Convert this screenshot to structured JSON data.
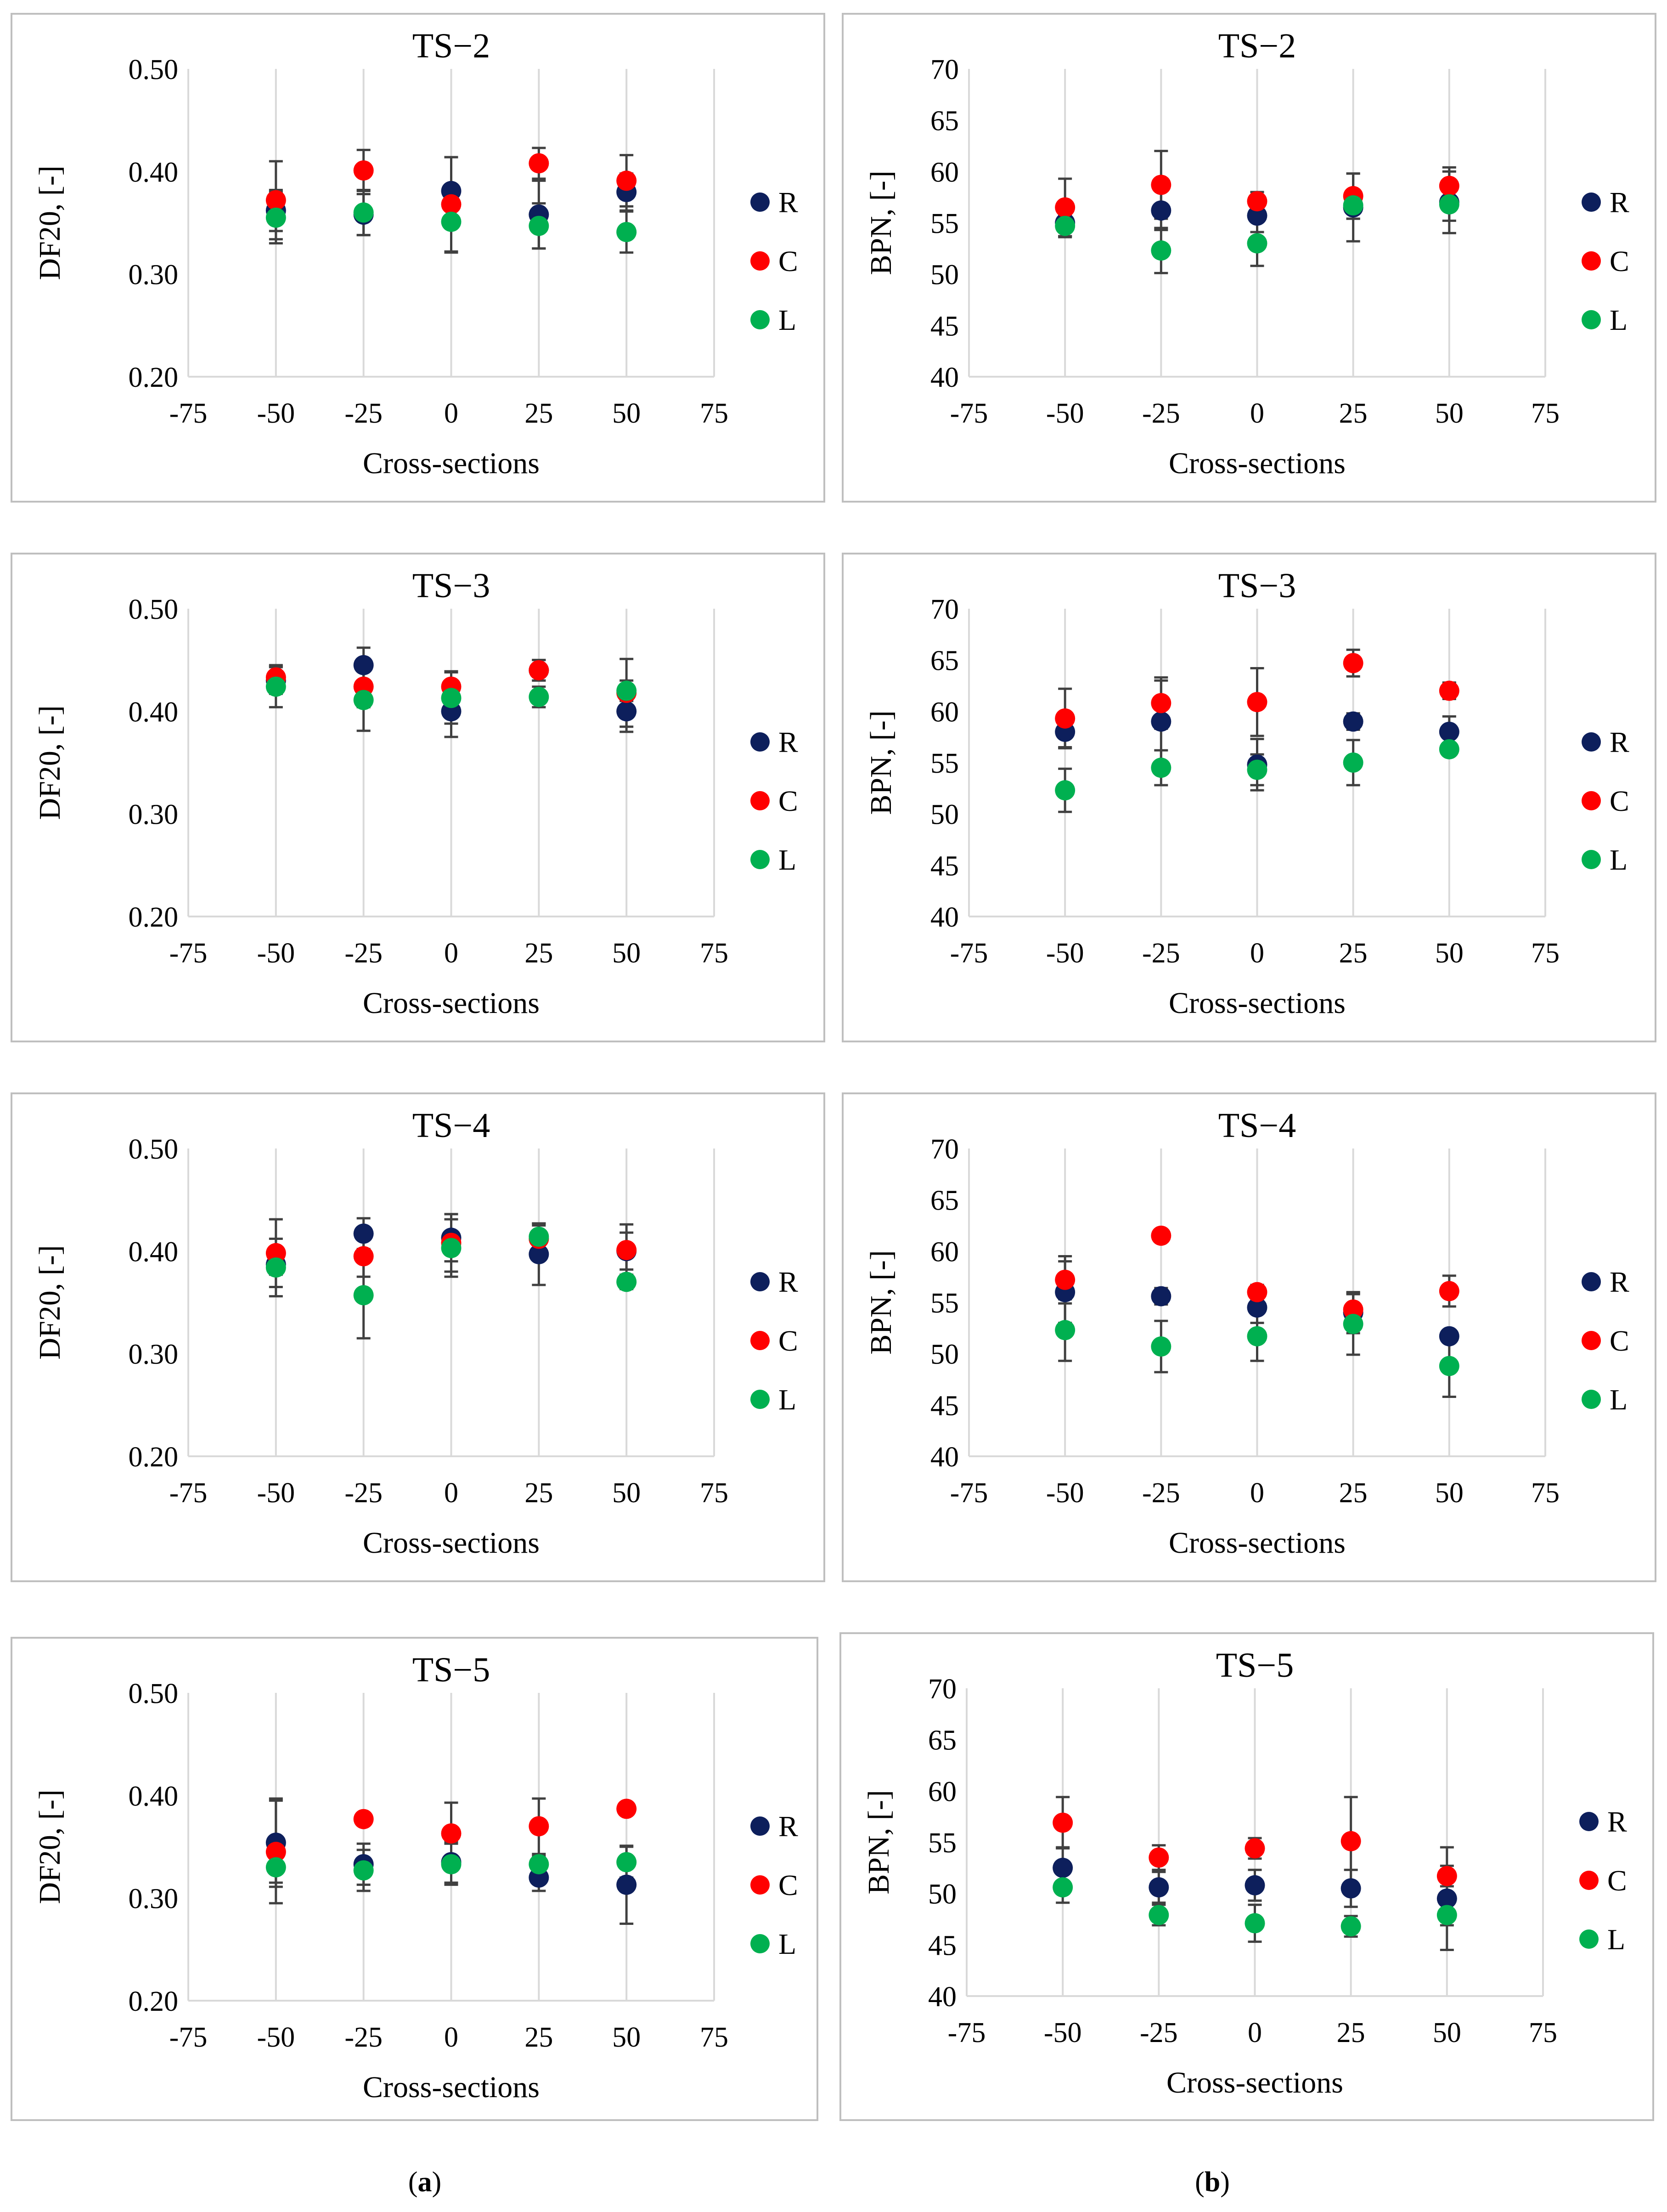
{
  "panel_labels": [
    {
      "open": "(",
      "letter": "a",
      "close": ")"
    },
    {
      "open": "(",
      "letter": "b",
      "close": ")"
    }
  ],
  "colors": {
    "R": "#0d1f5c",
    "C": "#ff0000",
    "L": "#00b050",
    "error_bar": "#404040",
    "grid": "#d9d9d9",
    "frame": "#bfbfbf"
  },
  "chart_data": [
    {
      "type": "scatter",
      "metric": "DF20",
      "title": "TS−2",
      "xlabel": "Cross-sections",
      "ylabel": "DF20, [-]",
      "xlim": [
        -75,
        75
      ],
      "xticks": [
        "-75",
        "-50",
        "-25",
        "0",
        "25",
        "50",
        "75"
      ],
      "ylim": [
        0.2,
        0.5
      ],
      "yticks": [
        "0.20",
        "0.30",
        "0.40",
        "0.50"
      ],
      "grid": "vertical",
      "legend": "right",
      "x": [
        -50,
        -25,
        0,
        25,
        50
      ],
      "series": [
        {
          "name": "R",
          "values": [
            0.362,
            0.358,
            0.381,
            0.358,
            0.38
          ],
          "errors": [
            0.02,
            0.02,
            0.033,
            0.033,
            0.018
          ]
        },
        {
          "name": "C",
          "values": [
            0.372,
            0.401,
            0.368,
            0.408,
            0.391
          ],
          "errors": [
            0.038,
            0.02,
            0.046,
            0.015,
            0.025
          ]
        },
        {
          "name": "L",
          "values": [
            0.355,
            0.36,
            0.351,
            0.347,
            0.341
          ],
          "errors": [
            0.025,
            0.022,
            0.03,
            0.022,
            0.02
          ]
        }
      ]
    },
    {
      "type": "scatter",
      "metric": "BPN",
      "title": "TS−2",
      "xlabel": "Cross-sections",
      "ylabel": "BPN, [-]",
      "xlim": [
        -75,
        75
      ],
      "xticks": [
        "-75",
        "-50",
        "-25",
        "0",
        "25",
        "50",
        "75"
      ],
      "ylim": [
        40,
        70
      ],
      "yticks": [
        "40",
        "45",
        "50",
        "55",
        "60",
        "65",
        "70"
      ],
      "grid": "vertical",
      "legend": "right",
      "x": [
        -50,
        -25,
        0,
        25,
        50
      ],
      "series": [
        {
          "name": "R",
          "values": [
            55.0,
            56.2,
            55.7,
            56.5,
            57.0
          ],
          "errors": [
            1.3,
            1.9,
            1.6,
            3.3,
            3.0
          ]
        },
        {
          "name": "C",
          "values": [
            56.5,
            58.7,
            57.1,
            57.6,
            58.6
          ],
          "errors": [
            2.8,
            3.3,
            0.9,
            2.2,
            1.8
          ]
        },
        {
          "name": "L",
          "values": [
            54.7,
            52.3,
            53.0,
            56.7,
            56.8
          ],
          "errors": [
            1.1,
            2.2,
            2.2,
            1.3,
            1.6
          ]
        }
      ]
    },
    {
      "type": "scatter",
      "metric": "DF20",
      "title": "TS−3",
      "xlabel": "Cross-sections",
      "ylabel": "DF20, [-]",
      "xlim": [
        -75,
        75
      ],
      "xticks": [
        "-75",
        "-50",
        "-25",
        "0",
        "25",
        "50",
        "75"
      ],
      "ylim": [
        0.2,
        0.5
      ],
      "yticks": [
        "0.20",
        "0.30",
        "0.40",
        "0.50"
      ],
      "grid": "vertical",
      "legend": "right",
      "x": [
        -50,
        -25,
        0,
        25,
        50
      ],
      "series": [
        {
          "name": "R",
          "values": [
            0.43,
            0.445,
            0.4,
            0.44,
            0.4
          ],
          "errors": [
            0.013,
            0.017,
            0.025,
            0.01,
            0.02
          ]
        },
        {
          "name": "C",
          "values": [
            0.433,
            0.424,
            0.424,
            0.44,
            0.418
          ],
          "errors": [
            0.012,
            0.02,
            0.015,
            0.01,
            0.033
          ]
        },
        {
          "name": "L",
          "values": [
            0.424,
            0.411,
            0.413,
            0.414,
            0.42
          ],
          "errors": [
            0.02,
            0.03,
            0.025,
            0.01,
            0.01
          ]
        }
      ]
    },
    {
      "type": "scatter",
      "metric": "BPN",
      "title": "TS−3",
      "xlabel": "Cross-sections",
      "ylabel": "BPN, [-]",
      "xlim": [
        -75,
        75
      ],
      "xticks": [
        "-75",
        "-50",
        "-25",
        "0",
        "25",
        "50",
        "75"
      ],
      "ylim": [
        40,
        70
      ],
      "yticks": [
        "40",
        "45",
        "50",
        "55",
        "60",
        "65",
        "70"
      ],
      "grid": "vertical",
      "legend": "right",
      "x": [
        -50,
        -25,
        0,
        25,
        50
      ],
      "series": [
        {
          "name": "R",
          "values": [
            58.0,
            59.0,
            54.8,
            59.0,
            58.0
          ],
          "errors": [
            1.5,
            4.0,
            2.5,
            0.8,
            1.5
          ]
        },
        {
          "name": "C",
          "values": [
            59.3,
            60.8,
            60.9,
            64.7,
            62.0
          ],
          "errors": [
            2.9,
            2.5,
            3.3,
            1.3,
            0.8
          ]
        },
        {
          "name": "L",
          "values": [
            52.3,
            54.5,
            54.3,
            55.0,
            56.3
          ],
          "errors": [
            2.1,
            1.7,
            1.5,
            2.2,
            0.6
          ]
        }
      ]
    },
    {
      "type": "scatter",
      "metric": "DF20",
      "title": "TS−4",
      "xlabel": "Cross-sections",
      "ylabel": "DF20, [-]",
      "xlim": [
        -75,
        75
      ],
      "xticks": [
        "-75",
        "-50",
        "-25",
        "0",
        "25",
        "50",
        "75"
      ],
      "ylim": [
        0.2,
        0.5
      ],
      "yticks": [
        "0.20",
        "0.30",
        "0.40",
        "0.50"
      ],
      "grid": "vertical",
      "legend": "right",
      "x": [
        -50,
        -25,
        0,
        25,
        50
      ],
      "series": [
        {
          "name": "R",
          "values": [
            0.387,
            0.417,
            0.413,
            0.397,
            0.4
          ],
          "errors": [
            0.01,
            0.015,
            0.023,
            0.03,
            0.018
          ]
        },
        {
          "name": "C",
          "values": [
            0.398,
            0.395,
            0.408,
            0.412,
            0.401
          ],
          "errors": [
            0.033,
            0.02,
            0.028,
            0.013,
            0.025
          ]
        },
        {
          "name": "L",
          "values": [
            0.384,
            0.357,
            0.403,
            0.414,
            0.37
          ],
          "errors": [
            0.028,
            0.042,
            0.028,
            0.013,
            0.007
          ]
        }
      ]
    },
    {
      "type": "scatter",
      "metric": "BPN",
      "title": "TS−4",
      "xlabel": "Cross-sections",
      "ylabel": "BPN, [-]",
      "xlim": [
        -75,
        75
      ],
      "xticks": [
        "-75",
        "-50",
        "-25",
        "0",
        "25",
        "50",
        "75"
      ],
      "ylim": [
        40,
        70
      ],
      "yticks": [
        "40",
        "45",
        "50",
        "55",
        "60",
        "65",
        "70"
      ],
      "grid": "vertical",
      "legend": "right",
      "x": [
        -50,
        -25,
        0,
        25,
        50
      ],
      "series": [
        {
          "name": "R",
          "values": [
            56.0,
            55.6,
            54.5,
            54.0,
            51.7
          ],
          "errors": [
            3.0,
            0.8,
            1.5,
            2.0,
            0.5
          ]
        },
        {
          "name": "C",
          "values": [
            57.2,
            61.5,
            56.0,
            54.3,
            56.1
          ],
          "errors": [
            2.3,
            0.5,
            0.7,
            1.5,
            1.5
          ]
        },
        {
          "name": "L",
          "values": [
            52.3,
            50.7,
            51.7,
            52.9,
            48.8
          ],
          "errors": [
            3.0,
            2.5,
            2.4,
            3.0,
            3.0
          ]
        }
      ]
    },
    {
      "type": "scatter",
      "metric": "DF20",
      "title": "TS−5",
      "xlabel": "Cross-sections",
      "ylabel": "DF20, [-]",
      "xlim": [
        -75,
        75
      ],
      "xticks": [
        "-75",
        "-50",
        "-25",
        "0",
        "25",
        "50",
        "75"
      ],
      "ylim": [
        0.2,
        0.5
      ],
      "yticks": [
        "0.20",
        "0.30",
        "0.40",
        "0.50"
      ],
      "grid": "vertical",
      "legend": "right",
      "x": [
        -50,
        -25,
        0,
        25,
        50
      ],
      "series": [
        {
          "name": "R",
          "values": [
            0.354,
            0.333,
            0.335,
            0.32,
            0.313
          ],
          "errors": [
            0.043,
            0.02,
            0.02,
            0.013,
            0.038
          ]
        },
        {
          "name": "C",
          "values": [
            0.345,
            0.377,
            0.363,
            0.37,
            0.387
          ],
          "errors": [
            0.05,
            0.005,
            0.03,
            0.027,
            0.005
          ]
        },
        {
          "name": "L",
          "values": [
            0.33,
            0.327,
            0.333,
            0.333,
            0.335
          ],
          "errors": [
            0.015,
            0.02,
            0.02,
            0.008,
            0.015
          ]
        }
      ]
    },
    {
      "type": "scatter",
      "metric": "BPN",
      "title": "TS−5",
      "xlabel": "Cross-sections",
      "ylabel": "BPN, [-]",
      "xlim": [
        -75,
        75
      ],
      "xticks": [
        "-75",
        "-50",
        "-25",
        "0",
        "25",
        "50",
        "75"
      ],
      "ylim": [
        40,
        70
      ],
      "yticks": [
        "40",
        "45",
        "50",
        "55",
        "60",
        "65",
        "70"
      ],
      "grid": "vertical",
      "legend": "right",
      "x": [
        -50,
        -25,
        0,
        25,
        50
      ],
      "series": [
        {
          "name": "R",
          "values": [
            52.5,
            50.6,
            50.8,
            50.5,
            49.5
          ],
          "errors": [
            2.0,
            1.5,
            1.5,
            1.8,
            5.0
          ]
        },
        {
          "name": "C",
          "values": [
            56.9,
            53.5,
            54.4,
            55.1,
            51.7
          ],
          "errors": [
            2.5,
            1.2,
            1.0,
            4.3,
            1.0
          ]
        },
        {
          "name": "L",
          "values": [
            50.6,
            47.9,
            47.1,
            46.8,
            47.9
          ],
          "errors": [
            1.5,
            1.0,
            1.8,
            1.0,
            1.0
          ]
        }
      ]
    }
  ]
}
